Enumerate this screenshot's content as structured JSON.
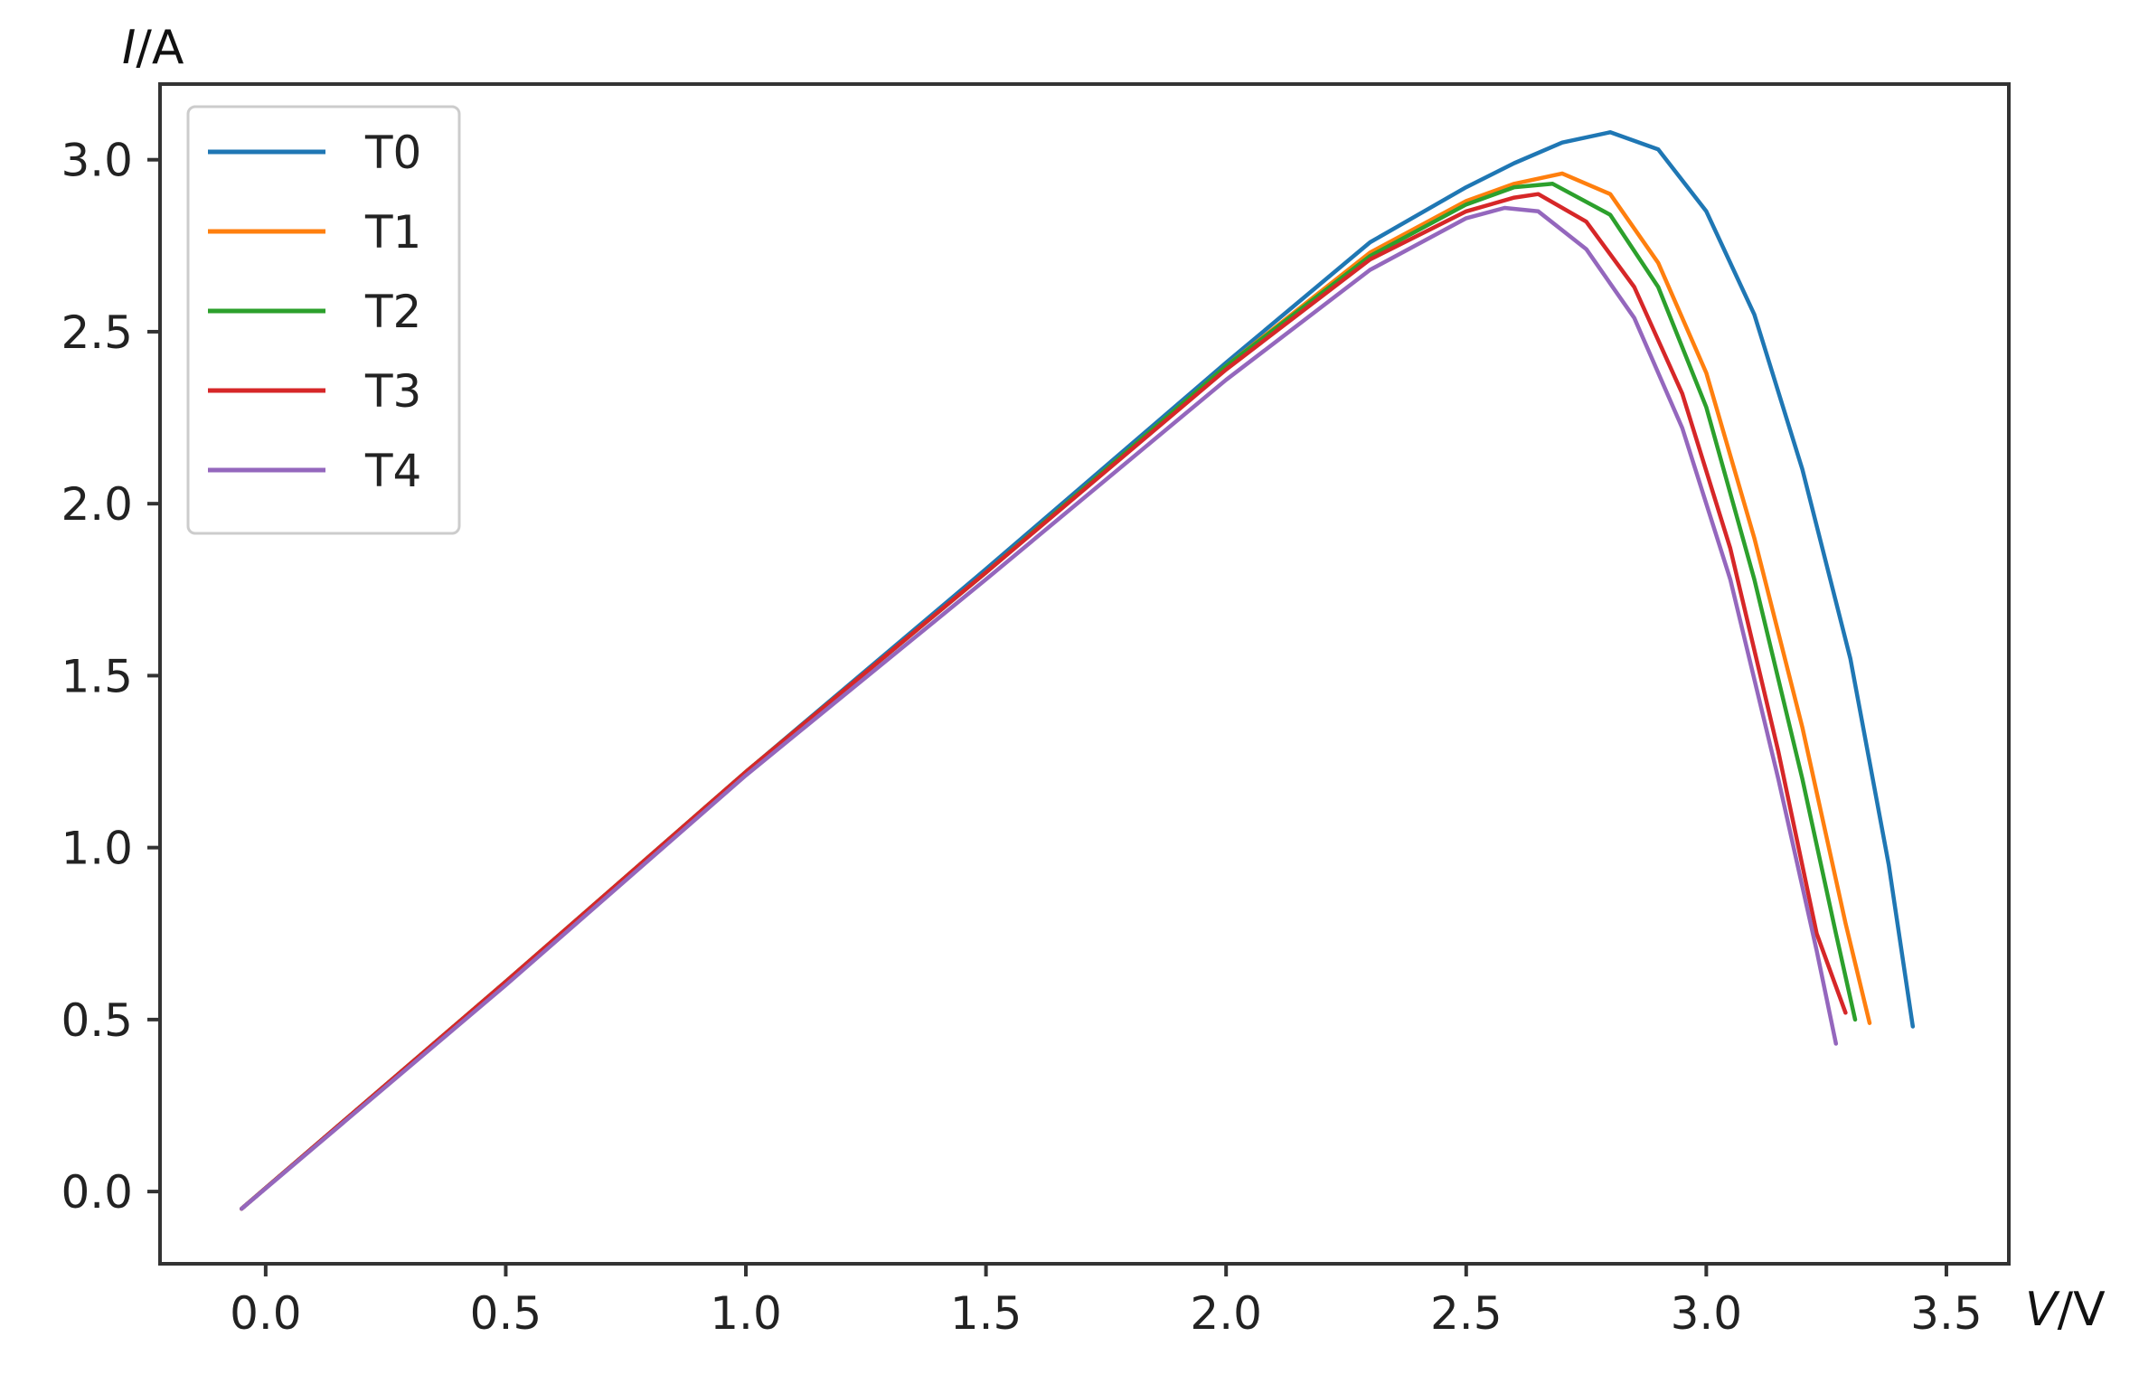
{
  "chart_data": {
    "type": "line",
    "xlabel": "V/V",
    "ylabel": "I/A",
    "xlabel_var": "V",
    "xlabel_unit": "/V",
    "ylabel_var": "I",
    "ylabel_unit": "/A",
    "xlim": [
      -0.22,
      3.63
    ],
    "ylim": [
      -0.21,
      3.22
    ],
    "xticks": [
      0.0,
      0.5,
      1.0,
      1.5,
      2.0,
      2.5,
      3.0,
      3.5
    ],
    "yticks": [
      0.0,
      0.5,
      1.0,
      1.5,
      2.0,
      2.5,
      3.0
    ],
    "xtick_labels": [
      "0.0",
      "0.5",
      "1.0",
      "1.5",
      "2.0",
      "2.5",
      "3.0",
      "3.5"
    ],
    "ytick_labels": [
      "0.0",
      "0.5",
      "1.0",
      "1.5",
      "2.0",
      "2.5",
      "3.0"
    ],
    "grid": false,
    "legend_position": "top-left",
    "series": [
      {
        "name": "T0",
        "color": "#1f77b4",
        "points": [
          [
            -0.05,
            -0.05
          ],
          [
            0.5,
            0.61
          ],
          [
            1.0,
            1.22
          ],
          [
            1.5,
            1.81
          ],
          [
            2.0,
            2.41
          ],
          [
            2.3,
            2.76
          ],
          [
            2.5,
            2.92
          ],
          [
            2.6,
            2.99
          ],
          [
            2.7,
            3.05
          ],
          [
            2.8,
            3.08
          ],
          [
            2.9,
            3.03
          ],
          [
            3.0,
            2.85
          ],
          [
            3.1,
            2.55
          ],
          [
            3.2,
            2.1
          ],
          [
            3.3,
            1.55
          ],
          [
            3.38,
            0.95
          ],
          [
            3.43,
            0.48
          ]
        ]
      },
      {
        "name": "T1",
        "color": "#ff7f0e",
        "points": [
          [
            -0.05,
            -0.05
          ],
          [
            0.5,
            0.61
          ],
          [
            1.0,
            1.22
          ],
          [
            1.5,
            1.8
          ],
          [
            2.0,
            2.4
          ],
          [
            2.3,
            2.73
          ],
          [
            2.5,
            2.88
          ],
          [
            2.6,
            2.93
          ],
          [
            2.7,
            2.96
          ],
          [
            2.8,
            2.9
          ],
          [
            2.9,
            2.7
          ],
          [
            3.0,
            2.38
          ],
          [
            3.1,
            1.9
          ],
          [
            3.2,
            1.35
          ],
          [
            3.29,
            0.78
          ],
          [
            3.34,
            0.49
          ]
        ]
      },
      {
        "name": "T2",
        "color": "#2ca02c",
        "points": [
          [
            -0.05,
            -0.05
          ],
          [
            0.5,
            0.61
          ],
          [
            1.0,
            1.22
          ],
          [
            1.5,
            1.8
          ],
          [
            2.0,
            2.4
          ],
          [
            2.3,
            2.72
          ],
          [
            2.5,
            2.87
          ],
          [
            2.6,
            2.92
          ],
          [
            2.68,
            2.93
          ],
          [
            2.8,
            2.84
          ],
          [
            2.9,
            2.63
          ],
          [
            3.0,
            2.28
          ],
          [
            3.1,
            1.78
          ],
          [
            3.2,
            1.2
          ],
          [
            3.27,
            0.75
          ],
          [
            3.31,
            0.5
          ]
        ]
      },
      {
        "name": "T3",
        "color": "#d62728",
        "points": [
          [
            -0.05,
            -0.05
          ],
          [
            0.5,
            0.61
          ],
          [
            1.0,
            1.22
          ],
          [
            1.5,
            1.8
          ],
          [
            2.0,
            2.39
          ],
          [
            2.3,
            2.71
          ],
          [
            2.5,
            2.85
          ],
          [
            2.6,
            2.89
          ],
          [
            2.65,
            2.9
          ],
          [
            2.75,
            2.82
          ],
          [
            2.85,
            2.63
          ],
          [
            2.95,
            2.32
          ],
          [
            3.05,
            1.87
          ],
          [
            3.15,
            1.28
          ],
          [
            3.23,
            0.75
          ],
          [
            3.29,
            0.52
          ]
        ]
      },
      {
        "name": "T4",
        "color": "#9467bd",
        "points": [
          [
            -0.05,
            -0.05
          ],
          [
            0.5,
            0.6
          ],
          [
            1.0,
            1.21
          ],
          [
            1.5,
            1.78
          ],
          [
            2.0,
            2.36
          ],
          [
            2.3,
            2.68
          ],
          [
            2.5,
            2.83
          ],
          [
            2.58,
            2.86
          ],
          [
            2.65,
            2.85
          ],
          [
            2.75,
            2.74
          ],
          [
            2.85,
            2.54
          ],
          [
            2.95,
            2.22
          ],
          [
            3.05,
            1.78
          ],
          [
            3.15,
            1.2
          ],
          [
            3.23,
            0.7
          ],
          [
            3.27,
            0.43
          ]
        ]
      }
    ]
  }
}
